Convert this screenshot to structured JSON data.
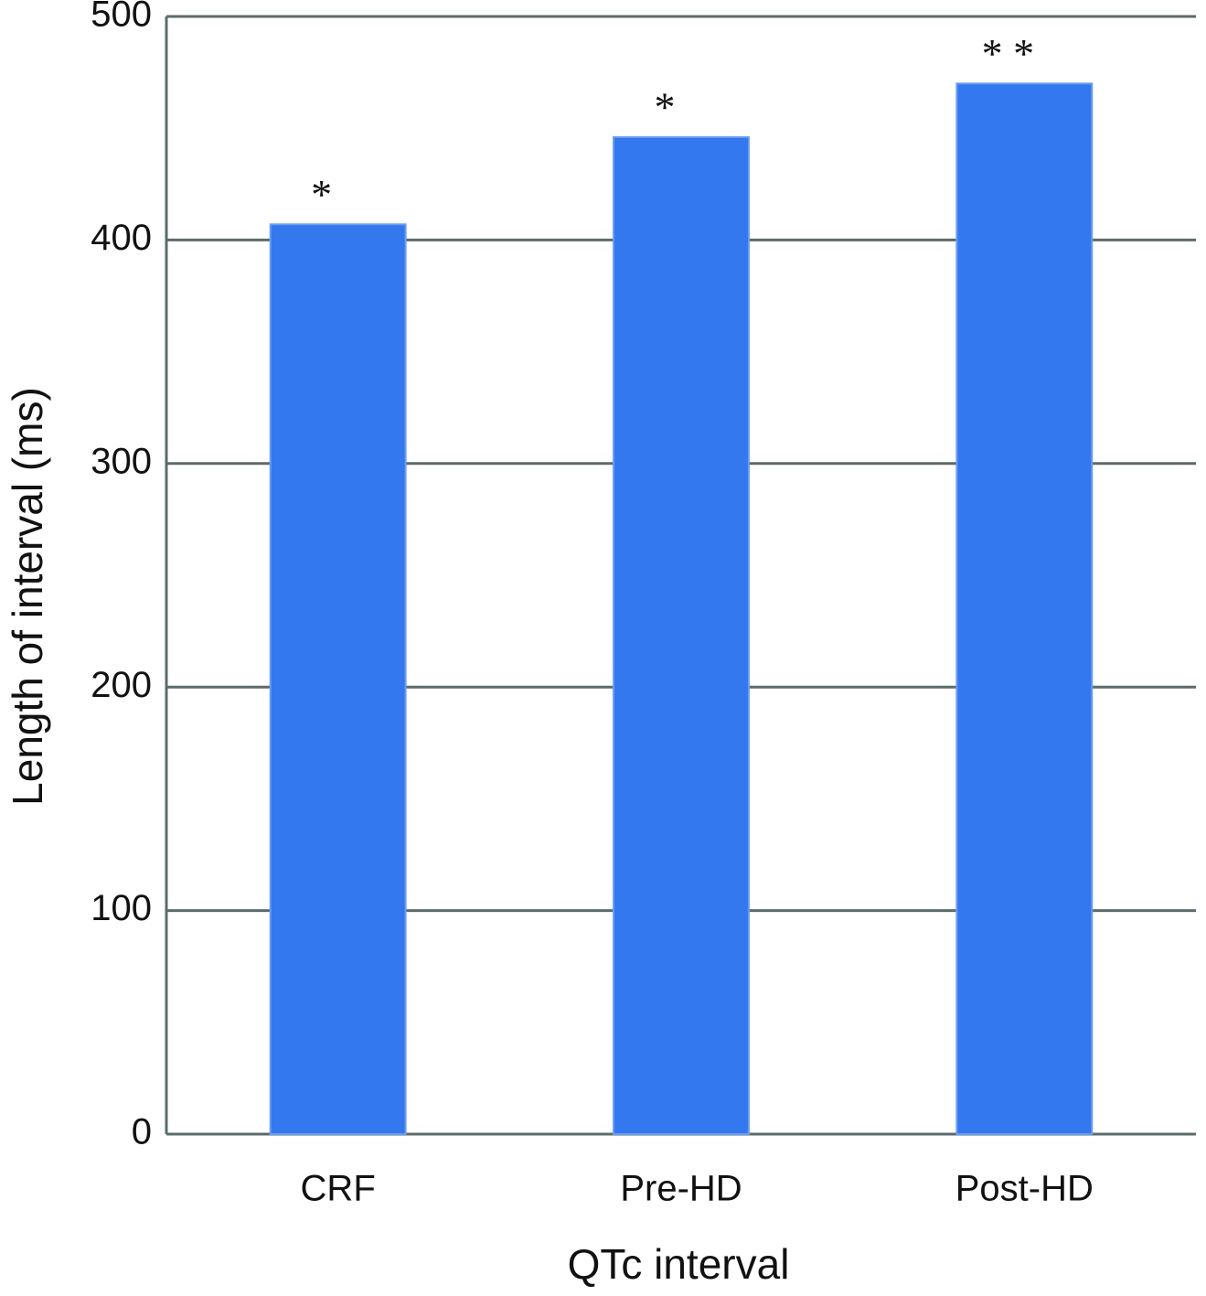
{
  "chart_data": {
    "type": "bar",
    "x_label": "QTc interval",
    "y_label": "Length of interval (ms)",
    "categories": [
      "CRF",
      "Pre-HD",
      "Post-HD"
    ],
    "values": [
      407,
      446,
      470
    ],
    "annotations": [
      "*",
      "*",
      "* *"
    ],
    "color": "#3478ef",
    "ylim": [
      0,
      500
    ],
    "yticks": [
      0,
      100,
      200,
      300,
      400,
      500
    ],
    "grid": true
  }
}
